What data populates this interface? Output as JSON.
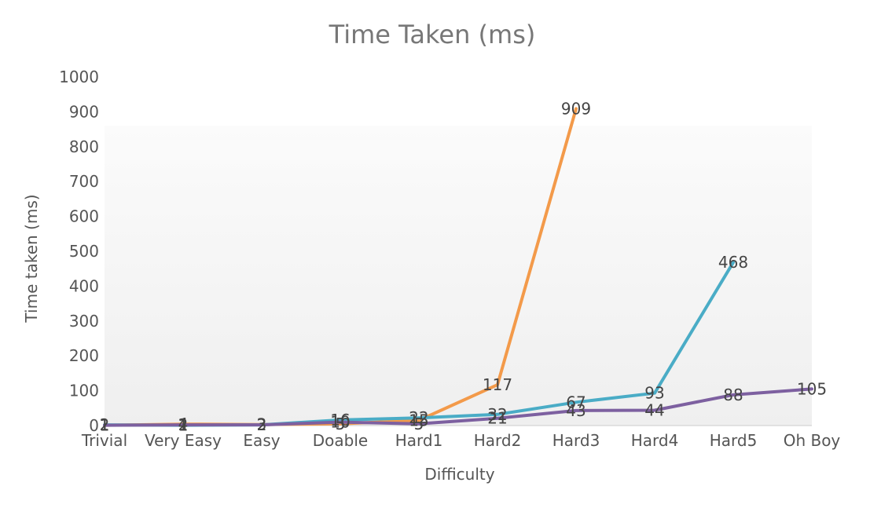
{
  "chart_data": {
    "type": "line",
    "title": "Time Taken (ms)",
    "xlabel": "Difficulty",
    "ylabel": "Time taken (ms)",
    "categories": [
      "Trivial",
      "Very Easy",
      "Easy",
      "Doable",
      "Hard1",
      "Hard2",
      "Hard3",
      "Hard4",
      "Hard5",
      "Oh Boy"
    ],
    "ylim": [
      0,
      1000
    ],
    "yticks": [
      "0",
      "100",
      "200",
      "300",
      "400",
      "500",
      "600",
      "700",
      "800",
      "900",
      "1000"
    ],
    "grid": false,
    "series": [
      {
        "color": "#f39a4a",
        "values": [
          1,
          4,
          3,
          5,
          15,
          117,
          909,
          null,
          null,
          null
        ],
        "labels": [
          "1",
          "4",
          "3",
          "5",
          "15",
          "117",
          "909",
          null,
          null,
          null
        ]
      },
      {
        "color": "#4aacc6",
        "values": [
          2,
          1,
          2,
          16,
          22,
          32,
          67,
          93,
          468,
          null
        ],
        "labels": [
          "2",
          "1",
          "2",
          "16",
          "22",
          "32",
          "67",
          "93",
          "468",
          null
        ]
      },
      {
        "color": "#7d60a0",
        "values": [
          1,
          2,
          2,
          10,
          5,
          21,
          43,
          44,
          88,
          105
        ],
        "labels": [
          "1",
          "2",
          "2",
          "10",
          "5",
          "21",
          "43",
          "44",
          "88",
          "105"
        ]
      }
    ]
  }
}
